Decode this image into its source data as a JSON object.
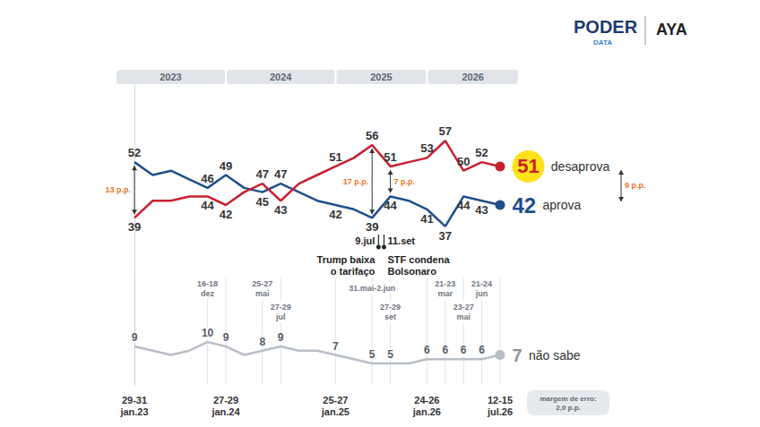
{
  "chart_data": {
    "type": "line",
    "categories": [
      "29-31 jan.23",
      null,
      null,
      null,
      null,
      "27-29 jan.24",
      null,
      null,
      null,
      null,
      null,
      "25-27 jan.25",
      null,
      null,
      null,
      null,
      "24-26 jan.26",
      null,
      null,
      null,
      "12-15 jul.26"
    ],
    "period_labels": [
      null,
      null,
      null,
      null,
      "16-18 dez",
      null,
      null,
      "25-27 mai",
      "27-29 jul",
      null,
      null,
      null,
      null,
      "31.mai-2.jun",
      "27-29 set",
      null,
      null,
      "21-23 mar",
      "23-27 mai",
      "21-24 jun",
      null
    ],
    "series": [
      {
        "name": "desaprova",
        "color": "#c8202f",
        "values": [
          39,
          43,
          43,
          44,
          44,
          42,
          45,
          47,
          43,
          47,
          49,
          51,
          53,
          56,
          51,
          52,
          53,
          57,
          50,
          52,
          51
        ],
        "value_labels": [
          "39",
          null,
          null,
          null,
          "44",
          "42",
          null,
          "47",
          "43",
          null,
          null,
          "51",
          null,
          "56",
          "51",
          null,
          "53",
          "57",
          "50",
          "52",
          "51"
        ]
      },
      {
        "name": "aprova",
        "color": "#1f4e8c",
        "values": [
          52,
          49,
          50,
          48,
          46,
          49,
          46,
          45,
          47,
          45,
          43,
          42,
          41,
          39,
          44,
          43,
          41,
          37,
          44,
          43,
          42
        ],
        "value_labels": [
          "52",
          null,
          null,
          null,
          "46",
          "49",
          null,
          "45",
          "47",
          null,
          null,
          "42",
          null,
          "39",
          "44",
          null,
          "41",
          "37",
          "44",
          "43",
          "42"
        ]
      },
      {
        "name": "não sabe",
        "color": "#b8bec6",
        "values": [
          9,
          8,
          7,
          8,
          10,
          9,
          7,
          8,
          9,
          8,
          8,
          7,
          6,
          5,
          5,
          5,
          6,
          6,
          6,
          6,
          7
        ],
        "value_labels": [
          "9",
          null,
          null,
          null,
          "10",
          "9",
          null,
          "8",
          "9",
          null,
          null,
          "7",
          null,
          "5",
          "5",
          null,
          "6",
          "6",
          "6",
          "6",
          "7"
        ]
      }
    ],
    "gap_labels": [
      "13 p.p.",
      null,
      null,
      null,
      null,
      null,
      null,
      null,
      null,
      null,
      null,
      null,
      null,
      "17 p.p.",
      "7 p.p.",
      null,
      null,
      null,
      null,
      null,
      "9 p.p."
    ],
    "events": [
      {
        "date": "9.jul",
        "text": "Trump baixa o tarifaço",
        "after": "31.mai-2.jun"
      },
      {
        "date": "11.set",
        "text": "STF condena Bolsonaro",
        "after": "31.mai-2.jun"
      }
    ],
    "year_labels": [
      "2023",
      "2024",
      "2025",
      "2026"
    ],
    "logos": [
      "PODER",
      "DATA",
      "AYA"
    ],
    "note": "margem de erro: 2,0 p.p.",
    "ylim": [
      0,
      70
    ],
    "tick_labels": false,
    "grid": false
  }
}
